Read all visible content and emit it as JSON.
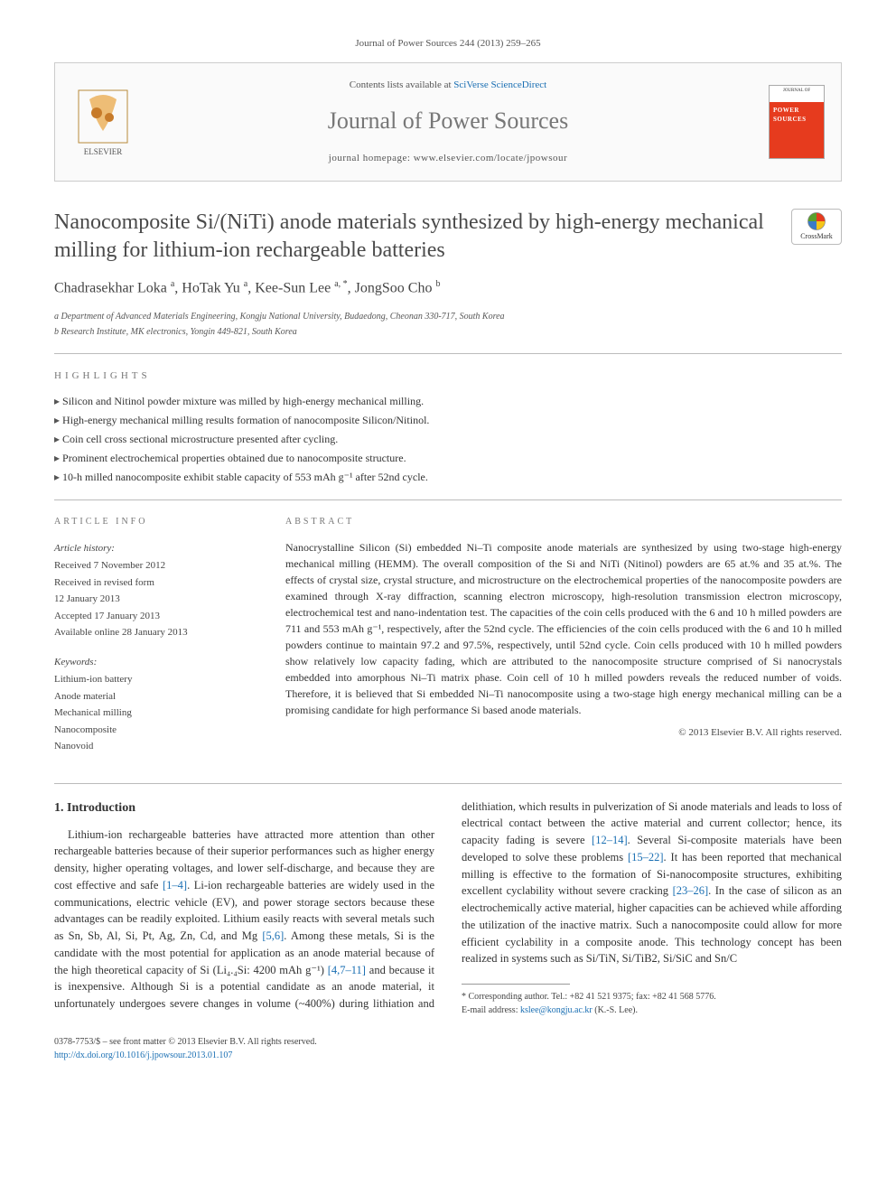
{
  "journal_ref": "Journal of Power Sources 244 (2013) 259–265",
  "header": {
    "contents_prefix": "Contents lists available at ",
    "contents_link": "SciVerse ScienceDirect",
    "journal_name": "Journal of Power Sources",
    "homepage_prefix": "journal homepage: ",
    "homepage_url": "www.elsevier.com/locate/jpowsour",
    "publisher": "ELSEVIER",
    "cover_top": "JOURNAL OF",
    "cover_title": "POWER SOURCES"
  },
  "title": "Nanocomposite Si/(NiTi) anode materials synthesized by high-energy mechanical milling for lithium-ion rechargeable batteries",
  "crossmark_label": "CrossMark",
  "authors_html": "Chadrasekhar Loka <sup>a</sup>, HoTak Yu <sup>a</sup>, Kee-Sun Lee <sup>a, *</sup>, JongSoo Cho <sup>b</sup>",
  "affiliations": [
    "a Department of Advanced Materials Engineering, Kongju National University, Budaedong, Cheonan 330-717, South Korea",
    "b Research Institute, MK electronics, Yongin 449-821, South Korea"
  ],
  "highlights_label": "HIGHLIGHTS",
  "highlights": [
    "Silicon and Nitinol powder mixture was milled by high-energy mechanical milling.",
    "High-energy mechanical milling results formation of nanocomposite Silicon/Nitinol.",
    "Coin cell cross sectional microstructure presented after cycling.",
    "Prominent electrochemical properties obtained due to nanocomposite structure.",
    "10-h milled nanocomposite exhibit stable capacity of 553 mAh g⁻¹ after 52nd cycle."
  ],
  "article_info": {
    "label": "ARTICLE INFO",
    "history_label": "Article history:",
    "history": [
      "Received 7 November 2012",
      "Received in revised form",
      "12 January 2013",
      "Accepted 17 January 2013",
      "Available online 28 January 2013"
    ],
    "keywords_label": "Keywords:",
    "keywords": [
      "Lithium-ion battery",
      "Anode material",
      "Mechanical milling",
      "Nanocomposite",
      "Nanovoid"
    ]
  },
  "abstract": {
    "label": "ABSTRACT",
    "text": "Nanocrystalline Silicon (Si) embedded Ni–Ti composite anode materials are synthesized by using two-stage high-energy mechanical milling (HEMM). The overall composition of the Si and NiTi (Nitinol) powders are 65 at.% and 35 at.%. The effects of crystal size, crystal structure, and microstructure on the electrochemical properties of the nanocomposite powders are examined through X-ray diffraction, scanning electron microscopy, high-resolution transmission electron microscopy, electrochemical test and nano-indentation test. The capacities of the coin cells produced with the 6 and 10 h milled powders are 711 and 553 mAh g⁻¹, respectively, after the 52nd cycle. The efficiencies of the coin cells produced with the 6 and 10 h milled powders continue to maintain 97.2 and 97.5%, respectively, until 52nd cycle. Coin cells produced with 10 h milled powders show relatively low capacity fading, which are attributed to the nanocomposite structure comprised of Si nanocrystals embedded into amorphous Ni–Ti matrix phase. Coin cell of 10 h milled powders reveals the reduced number of voids. Therefore, it is believed that Si embedded Ni–Ti nanocomposite using a two-stage high energy mechanical milling can be a promising candidate for high performance Si based anode materials.",
    "copyright": "© 2013 Elsevier B.V. All rights reserved."
  },
  "intro": {
    "heading": "1. Introduction",
    "p1_pre": "Lithium-ion rechargeable batteries have attracted more attention than other rechargeable batteries because of their superior performances such as higher energy density, higher operating voltages, and lower self-discharge, and because they are cost effective and safe ",
    "ref1": "[1–4]",
    "p1_mid": ". Li-ion rechargeable batteries are widely used in the communications, electric vehicle (EV), and power storage sectors because these advantages can be readily exploited. Lithium easily reacts with several metals such as Sn, Sb, Al, Si, Pt, Ag, Zn, Cd, and Mg ",
    "ref2": "[5,6]",
    "p1_post": ". Among these metals, Si is the candidate with the most potential for application as an anode material",
    "p2_pre": "because of the high theoretical capacity of Si (Li₄.₄Si: 4200 mAh g⁻¹) ",
    "ref3": "[4,7–11]",
    "p2_a": " and because it is inexpensive. Although Si is a potential candidate as an anode material, it unfortunately undergoes severe changes in volume (~400%) during lithiation and delithiation, which results in pulverization of Si anode materials and leads to loss of electrical contact between the active material and current collector; hence, its capacity fading is severe ",
    "ref4": "[12–14]",
    "p2_b": ". Several Si-composite materials have been developed to solve these problems ",
    "ref5": "[15–22]",
    "p2_c": ". It has been reported that mechanical milling is effective to the formation of Si-nanocomposite structures, exhibiting excellent cyclability without severe cracking ",
    "ref6": "[23–26]",
    "p2_d": ". In the case of silicon as an electrochemically active material, higher capacities can be achieved while affording the utilization of the inactive matrix. Such a nanocomposite could allow for more efficient cyclability in a composite anode. This technology concept has been realized in systems such as Si/TiN, Si/TiB2, Si/SiC and Sn/C"
  },
  "footnote": {
    "corr": "* Corresponding author. Tel.: +82 41 521 9375; fax: +82 41 568 5776.",
    "email_label": "E-mail address: ",
    "email": "kslee@kongju.ac.kr",
    "email_post": " (K.-S. Lee)."
  },
  "bottom": {
    "issn": "0378-7753/$ – see front matter © 2013 Elsevier B.V. All rights reserved.",
    "doi_url": "http://dx.doi.org/10.1016/j.jpowsour.2013.01.107"
  },
  "colors": {
    "link": "#1a6fb3",
    "cover_red": "#e63b1e",
    "text_gray": "#4a4a4a"
  }
}
